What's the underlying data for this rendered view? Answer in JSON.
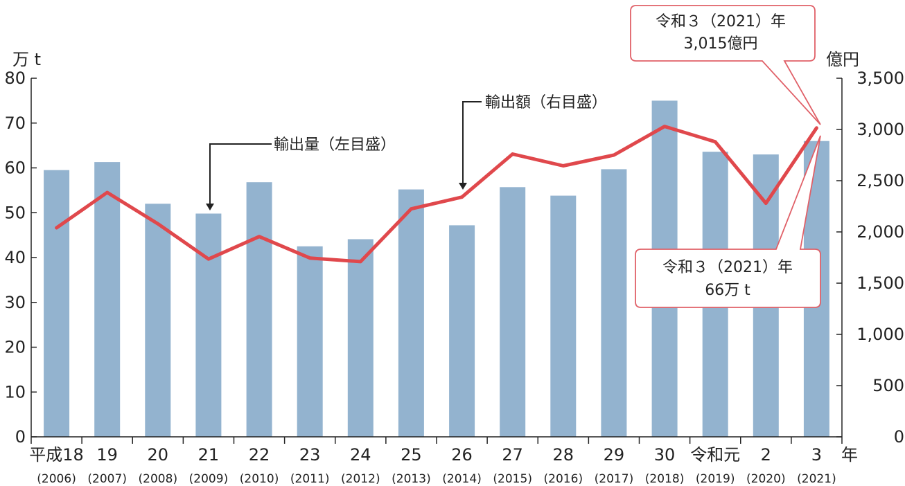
{
  "chart_data": {
    "type": "bar+line",
    "categories": [
      "平成18",
      "19",
      "20",
      "21",
      "22",
      "23",
      "24",
      "25",
      "26",
      "27",
      "28",
      "29",
      "30",
      "令和元",
      "2",
      "3"
    ],
    "category_years": [
      "(2006)",
      "(2007)",
      "(2008)",
      "(2009)",
      "(2010)",
      "(2011)",
      "(2012)",
      "(2013)",
      "(2014)",
      "(2015)",
      "(2016)",
      "(2017)",
      "(2018)",
      "(2019)",
      "(2020)",
      "(2021)"
    ],
    "x_unit": "年",
    "left_axis": {
      "unit_label": "万 t",
      "ylim": [
        0,
        80
      ],
      "ticks": [
        "0",
        "10",
        "20",
        "30",
        "40",
        "50",
        "60",
        "70",
        "80"
      ]
    },
    "right_axis": {
      "unit_label": "億円",
      "ylim": [
        0,
        3500
      ],
      "ticks": [
        "0",
        "500",
        "1,000",
        "1,500",
        "2,000",
        "2,500",
        "3,000",
        "3,500"
      ]
    },
    "series": [
      {
        "name": "輸出量（左目盛）",
        "type": "bar",
        "axis": "left",
        "color": "#93b3cf",
        "values": [
          59.5,
          61.3,
          52.0,
          49.8,
          56.8,
          42.5,
          44.1,
          55.2,
          47.2,
          55.7,
          53.8,
          59.7,
          75.0,
          63.6,
          63.0,
          66.0
        ]
      },
      {
        "name": "輸出額（右目盛）",
        "type": "line",
        "axis": "right",
        "color": "#e0484c",
        "values": [
          2040,
          2385,
          2080,
          1735,
          1955,
          1745,
          1710,
          2225,
          2340,
          2760,
          2645,
          2750,
          3030,
          2880,
          2280,
          3015
        ]
      }
    ],
    "annotations": {
      "volume_label": "輸出量（左目盛）",
      "value_label": "輸出額（右目盛）",
      "callout_value": {
        "line1": "令和３（2021）年",
        "line2": "3,015億円"
      },
      "callout_volume": {
        "line1": "令和３（2021）年",
        "line2": "66万 t"
      }
    }
  }
}
